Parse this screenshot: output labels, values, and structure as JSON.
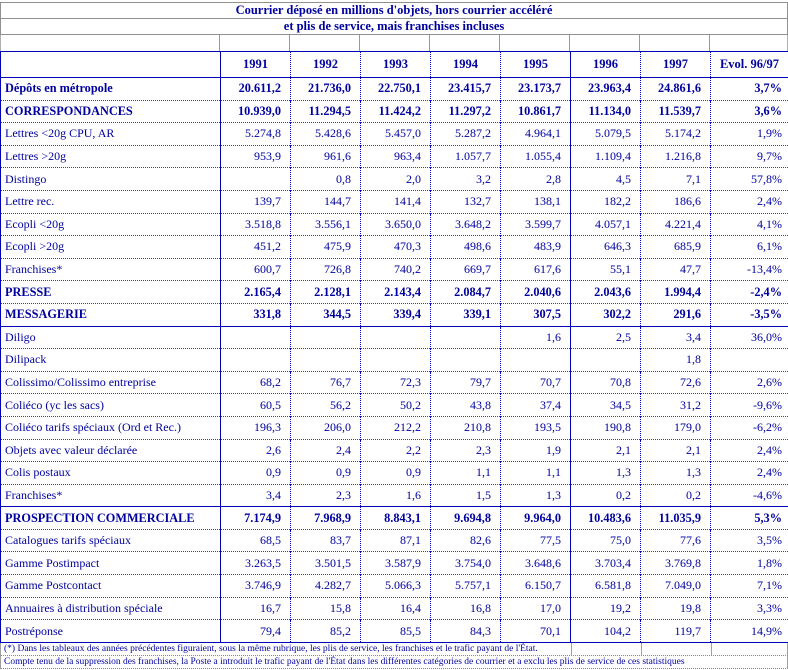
{
  "title": {
    "line1": "Courrier déposé en millions d'objets, hors courrier accéléré",
    "line2": "et plis de service, mais franchises incluses"
  },
  "colors": {
    "text_navy": "#0000A0",
    "table_border_blue": "#0000B8",
    "grid_dotted_gray": "#4a4a4a",
    "outer_gray": "#909090"
  },
  "table": {
    "header": [
      "",
      "1991",
      "1992",
      "1993",
      "1994",
      "1995",
      "1996",
      "1997",
      "Evol. 96/97"
    ],
    "rows": [
      {
        "label": "Dépôts en métropole",
        "type": "section",
        "values": [
          "20.611,2",
          "21.736,0",
          "22.750,1",
          "23.415,7",
          "23.173,7",
          "23.963,4",
          "24.861,6",
          "3,7%"
        ]
      },
      {
        "label": "CORRESPONDANCES",
        "type": "section",
        "values": [
          "10.939,0",
          "11.294,5",
          "11.424,2",
          "11.297,2",
          "10.861,7",
          "11.134,0",
          "11.539,7",
          "3,6%"
        ]
      },
      {
        "label": "Lettres <20g CPU, AR",
        "type": "item",
        "values": [
          "5.274,8",
          "5.428,6",
          "5.457,0",
          "5.287,2",
          "4.964,1",
          "5.079,5",
          "5.174,2",
          "1,9%"
        ]
      },
      {
        "label": "Lettres >20g",
        "type": "item",
        "values": [
          "953,9",
          "961,6",
          "963,4",
          "1.057,7",
          "1.055,4",
          "1.109,4",
          "1.216,8",
          "9,7%"
        ]
      },
      {
        "label": "Distingo",
        "type": "item",
        "values": [
          "",
          "0,8",
          "2,0",
          "3,2",
          "2,8",
          "4,5",
          "7,1",
          "57,8%"
        ]
      },
      {
        "label": "Lettre rec.",
        "type": "item",
        "values": [
          "139,7",
          "144,7",
          "141,4",
          "132,7",
          "138,1",
          "182,2",
          "186,6",
          "2,4%"
        ]
      },
      {
        "label": "Ecopli <20g",
        "type": "item",
        "values": [
          "3.518,8",
          "3.556,1",
          "3.650,0",
          "3.648,2",
          "3.599,7",
          "4.057,1",
          "4.221,4",
          "4,1%"
        ]
      },
      {
        "label": "Ecopli >20g",
        "type": "item",
        "values": [
          "451,2",
          "475,9",
          "470,3",
          "498,6",
          "483,9",
          "646,3",
          "685,9",
          "6,1%"
        ]
      },
      {
        "label": "Franchises*",
        "type": "item",
        "values": [
          "600,7",
          "726,8",
          "740,2",
          "669,7",
          "617,6",
          "55,1",
          "47,7",
          "-13,4%"
        ]
      },
      {
        "label": "PRESSE",
        "type": "section",
        "values": [
          "2.165,4",
          "2.128,1",
          "2.143,4",
          "2.084,7",
          "2.040,6",
          "2.043,6",
          "1.994,4",
          "-2,4%"
        ]
      },
      {
        "label": "MESSAGERIE",
        "type": "section",
        "values": [
          "331,8",
          "344,5",
          "339,4",
          "339,1",
          "307,5",
          "302,2",
          "291,6",
          "-3,5%"
        ]
      },
      {
        "label": "Diligo",
        "type": "item",
        "values": [
          "",
          "",
          "",
          "",
          "1,6",
          "2,5",
          "3,4",
          "36,0%"
        ]
      },
      {
        "label": "Dilipack",
        "type": "item",
        "values": [
          "",
          "",
          "",
          "",
          "",
          "",
          "1,8",
          ""
        ]
      },
      {
        "label": "Colissimo/Colissimo entreprise",
        "type": "item",
        "values": [
          "68,2",
          "76,7",
          "72,3",
          "79,7",
          "70,7",
          "70,8",
          "72,6",
          "2,6%"
        ]
      },
      {
        "label": "Coliéco (yc les sacs)",
        "type": "item",
        "values": [
          "60,5",
          "56,2",
          "50,2",
          "43,8",
          "37,4",
          "34,5",
          "31,2",
          "-9,6%"
        ]
      },
      {
        "label": "Coliéco tarifs spéciaux (Ord et Rec.)",
        "type": "item",
        "values": [
          "196,3",
          "206,0",
          "212,2",
          "210,8",
          "193,5",
          "190,8",
          "179,0",
          "-6,2%"
        ]
      },
      {
        "label": "Objets avec valeur déclarée",
        "type": "item",
        "values": [
          "2,6",
          "2,4",
          "2,2",
          "2,3",
          "1,9",
          "2,1",
          "2,1",
          "2,4%"
        ]
      },
      {
        "label": "Colis postaux",
        "type": "item",
        "values": [
          "0,9",
          "0,9",
          "0,9",
          "1,1",
          "1,1",
          "1,3",
          "1,3",
          "2,4%"
        ]
      },
      {
        "label": "Franchises*",
        "type": "item",
        "values": [
          "3,4",
          "2,3",
          "1,6",
          "1,5",
          "1,3",
          "0,2",
          "0,2",
          "-4,6%"
        ]
      },
      {
        "label": "PROSPECTION COMMERCIALE",
        "type": "section",
        "values": [
          "7.174,9",
          "7.968,9",
          "8.843,1",
          "9.694,8",
          "9.964,0",
          "10.483,6",
          "11.035,9",
          "5,3%"
        ]
      },
      {
        "label": "Catalogues tarifs spéciaux",
        "type": "item",
        "values": [
          "68,5",
          "83,7",
          "87,1",
          "82,6",
          "77,5",
          "75,0",
          "77,6",
          "3,5%"
        ]
      },
      {
        "label": "Gamme Postimpact",
        "type": "item",
        "values": [
          "3.263,5",
          "3.501,5",
          "3.587,9",
          "3.754,0",
          "3.648,6",
          "3.703,4",
          "3.769,8",
          "1,8%"
        ]
      },
      {
        "label": "Gamme Postcontact",
        "type": "item",
        "values": [
          "3.746,9",
          "4.282,7",
          "5.066,3",
          "5.757,1",
          "6.150,7",
          "6.581,8",
          "7.049,0",
          "7,1%"
        ]
      },
      {
        "label": "Annuaires à distribution spéciale",
        "type": "item",
        "values": [
          "16,7",
          "15,8",
          "16,4",
          "16,8",
          "17,0",
          "19,2",
          "19,8",
          "3,3%"
        ]
      },
      {
        "label": "Postréponse",
        "type": "item",
        "values": [
          "79,4",
          "85,2",
          "85,5",
          "84,3",
          "70,1",
          "104,2",
          "119,7",
          "14,9%"
        ]
      }
    ]
  },
  "footnotes": {
    "line1": "(*) Dans les tableaux des années précédentes figuraient, sous la même rubrique, les plis de service, les franchises et le trafic payant de l'État.",
    "line2": "Compte tenu de la suppression des franchises, la Poste a introduit le trafic payant de l'État dans les différentes catégories de courrier et a exclu les plis de service de ces statistiques"
  }
}
